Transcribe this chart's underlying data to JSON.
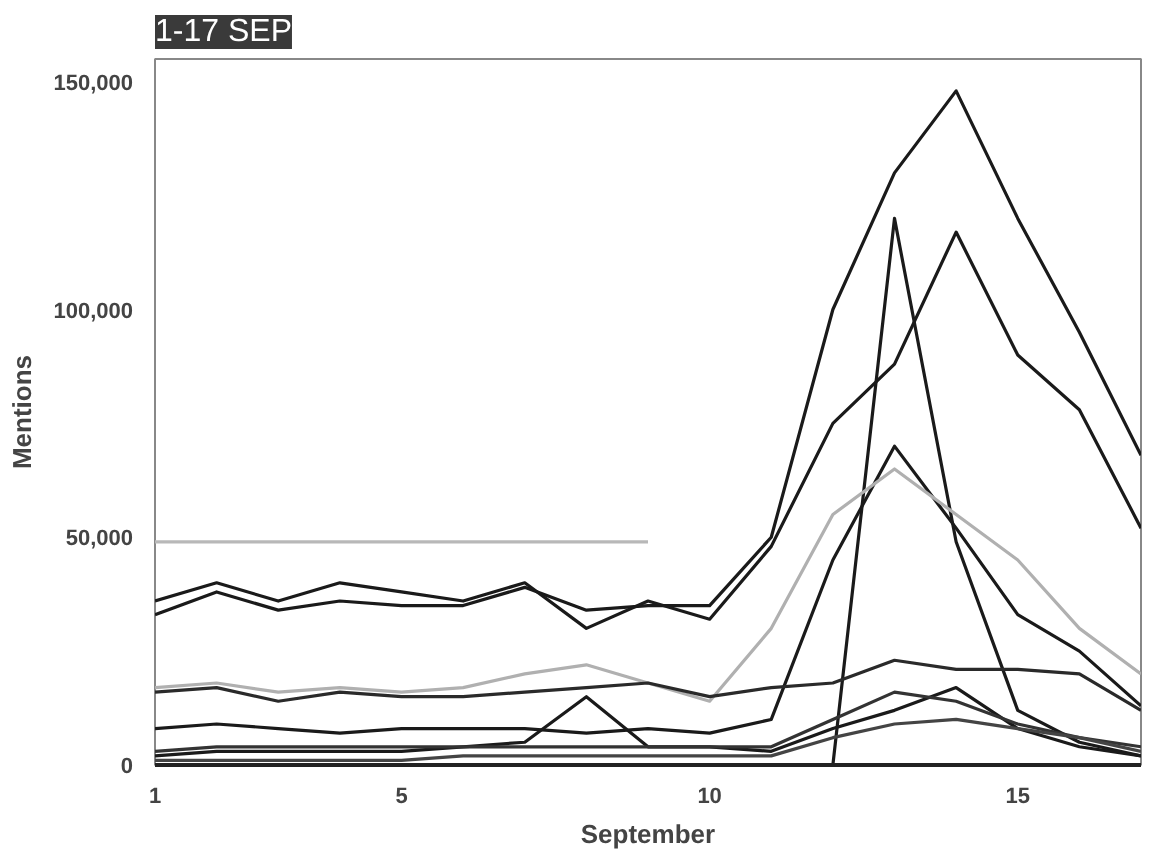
{
  "chart_data": {
    "type": "line",
    "title": "1-17 SEP",
    "xlabel": "September",
    "ylabel": "Mentions",
    "x": [
      1,
      2,
      3,
      4,
      5,
      6,
      7,
      8,
      9,
      10,
      11,
      12,
      13,
      14,
      15,
      16,
      17
    ],
    "series": [
      {
        "color": "#1a1a1a",
        "values": [
          33000,
          38000,
          34000,
          36000,
          35000,
          35000,
          39000,
          34000,
          35000,
          35000,
          50000,
          100000,
          130000,
          148000,
          120000,
          95000,
          68000
        ]
      },
      {
        "color": "#1a1a1a",
        "values": [
          36000,
          40000,
          36000,
          40000,
          38000,
          36000,
          40000,
          30000,
          36000,
          32000,
          48000,
          75000,
          88000,
          117000,
          90000,
          78000,
          52000
        ]
      },
      {
        "color": "#1a1a1a",
        "values": [
          0,
          0,
          0,
          0,
          0,
          0,
          0,
          0,
          0,
          0,
          0,
          0,
          120000,
          49000,
          12000,
          5000,
          2000
        ]
      },
      {
        "color": "#1a1a1a",
        "values": [
          8000,
          9000,
          8000,
          7000,
          8000,
          8000,
          8000,
          7000,
          8000,
          7000,
          10000,
          45000,
          70000,
          52000,
          33000,
          25000,
          13000
        ]
      },
      {
        "color": "#b0b0b0",
        "values": [
          17000,
          18000,
          16000,
          17000,
          16000,
          17000,
          20000,
          22000,
          18000,
          14000,
          30000,
          55000,
          65000,
          55000,
          45000,
          30000,
          20000
        ]
      },
      {
        "color": "#2a2a2a",
        "values": [
          16000,
          17000,
          14000,
          16000,
          15000,
          15000,
          16000,
          17000,
          18000,
          15000,
          17000,
          18000,
          23000,
          21000,
          21000,
          20000,
          12000
        ]
      },
      {
        "color": "#1a1a1a",
        "values": [
          2000,
          3000,
          3000,
          3000,
          3000,
          4000,
          5000,
          15000,
          4000,
          4000,
          3000,
          8000,
          12000,
          17000,
          8000,
          4000,
          2000
        ]
      },
      {
        "color": "#333333",
        "values": [
          3000,
          4000,
          4000,
          4000,
          4000,
          4000,
          4000,
          4000,
          4000,
          4000,
          4000,
          10000,
          16000,
          14000,
          9000,
          6000,
          4000
        ]
      },
      {
        "color": "#444444",
        "values": [
          1000,
          1000,
          1000,
          1000,
          1000,
          2000,
          2000,
          2000,
          2000,
          2000,
          2000,
          6000,
          9000,
          10000,
          8000,
          6000,
          3000
        ]
      },
      {
        "color": "#b8b8b8",
        "values": [
          49000,
          49000,
          49000,
          49000,
          49000,
          49000,
          49000,
          49000,
          49000,
          null,
          null,
          null,
          null,
          null,
          null,
          null,
          null
        ]
      }
    ],
    "xlim": [
      1,
      17
    ],
    "ylim": [
      0,
      155000
    ],
    "xticks": [
      1,
      5,
      10,
      15
    ],
    "yticks": [
      {
        "value": 0,
        "label": "0"
      },
      {
        "value": 50000,
        "label": "50,000"
      },
      {
        "value": 100000,
        "label": "100,000"
      },
      {
        "value": 150000,
        "label": "150,000"
      }
    ],
    "grid": false,
    "marker": "none",
    "line_style": "solid"
  }
}
